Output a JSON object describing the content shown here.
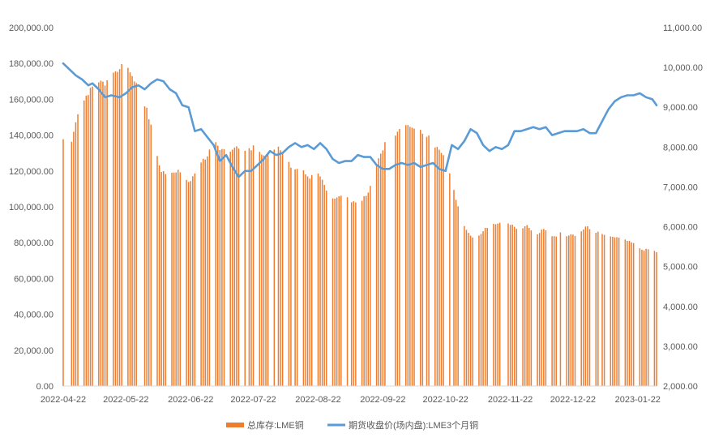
{
  "chart_data": {
    "type": "bar+line",
    "title": "",
    "xlabel": "",
    "ylabel": "",
    "y2label": "",
    "grid": false,
    "legend_position": "bottom",
    "x_ticks": [
      "2022-04-22",
      "2022-05-22",
      "2022-06-22",
      "2022-07-22",
      "2022-08-22",
      "2022-09-22",
      "2022-10-22",
      "2022-11-22",
      "2022-12-22",
      "2023-01-22"
    ],
    "y_left": {
      "min": 0,
      "max": 200000,
      "ticks": [
        "0.00",
        "20,000.00",
        "40,000.00",
        "60,000.00",
        "80,000.00",
        "100,000.00",
        "120,000.00",
        "140,000.00",
        "160,000.00",
        "180,000.00",
        "200,000.00"
      ]
    },
    "y_right": {
      "min": 2000,
      "max": 11000,
      "ticks": [
        "2,000.00",
        "3,000.00",
        "4,000.00",
        "5,000.00",
        "6,000.00",
        "7,000.00",
        "8,000.00",
        "9,000.00",
        "10,000.00",
        "11,000.00"
      ]
    },
    "series": [
      {
        "name": "总库存:LME铜",
        "type": "bar",
        "axis": "left",
        "color": "#ED7D31",
        "anchors": [
          [
            "2022-04-22",
            137500
          ],
          [
            "2022-04-26",
            137000
          ],
          [
            "2022-04-28",
            148000
          ],
          [
            "2022-05-01",
            156000
          ],
          [
            "2022-05-05",
            165000
          ],
          [
            "2022-05-08",
            170000
          ],
          [
            "2022-05-12",
            168000
          ],
          [
            "2022-05-15",
            176000
          ],
          [
            "2022-05-19",
            177000
          ],
          [
            "2022-05-22",
            181000
          ],
          [
            "2022-05-25",
            172000
          ],
          [
            "2022-05-28",
            168000
          ],
          [
            "2022-06-01",
            154000
          ],
          [
            "2022-06-04",
            140000
          ],
          [
            "2022-06-08",
            119000
          ],
          [
            "2022-06-12",
            118000
          ],
          [
            "2022-06-16",
            121000
          ],
          [
            "2022-06-19",
            117000
          ],
          [
            "2022-06-22",
            114000
          ],
          [
            "2022-06-26",
            124000
          ],
          [
            "2022-06-30",
            128000
          ],
          [
            "2022-07-03",
            136000
          ],
          [
            "2022-07-07",
            132000
          ],
          [
            "2022-07-11",
            131000
          ],
          [
            "2022-07-15",
            133000
          ],
          [
            "2022-07-19",
            131000
          ],
          [
            "2022-07-22",
            133000
          ],
          [
            "2022-07-26",
            130000
          ],
          [
            "2022-07-30",
            127000
          ],
          [
            "2022-08-02",
            135000
          ],
          [
            "2022-08-06",
            128000
          ],
          [
            "2022-08-10",
            121000
          ],
          [
            "2022-08-14",
            122000
          ],
          [
            "2022-08-18",
            116000
          ],
          [
            "2022-08-22",
            119000
          ],
          [
            "2022-08-26",
            109000
          ],
          [
            "2022-08-30",
            104000
          ],
          [
            "2022-09-03",
            106000
          ],
          [
            "2022-09-07",
            103000
          ],
          [
            "2022-09-11",
            102000
          ],
          [
            "2022-09-15",
            108000
          ],
          [
            "2022-09-19",
            124000
          ],
          [
            "2022-09-23",
            135000
          ],
          [
            "2022-09-27",
            139000
          ],
          [
            "2022-10-01",
            145000
          ],
          [
            "2022-10-05",
            146000
          ],
          [
            "2022-10-09",
            144000
          ],
          [
            "2022-10-13",
            140000
          ],
          [
            "2022-10-17",
            134000
          ],
          [
            "2022-10-21",
            128000
          ],
          [
            "2022-10-25",
            114000
          ],
          [
            "2022-10-29",
            95000
          ],
          [
            "2022-11-02",
            85000
          ],
          [
            "2022-11-06",
            82000
          ],
          [
            "2022-11-10",
            88000
          ],
          [
            "2022-11-14",
            90000
          ],
          [
            "2022-11-18",
            91000
          ],
          [
            "2022-11-22",
            90000
          ],
          [
            "2022-11-26",
            87000
          ],
          [
            "2022-11-30",
            89000
          ],
          [
            "2022-12-04",
            84000
          ],
          [
            "2022-12-08",
            88000
          ],
          [
            "2022-12-12",
            83000
          ],
          [
            "2022-12-16",
            85000
          ],
          [
            "2022-12-20",
            84000
          ],
          [
            "2022-12-24",
            84000
          ],
          [
            "2022-12-28",
            89000
          ],
          [
            "2022-12-31",
            87000
          ],
          [
            "2023-01-04",
            85000
          ],
          [
            "2023-01-08",
            84000
          ],
          [
            "2023-01-12",
            83000
          ],
          [
            "2023-01-16",
            82000
          ],
          [
            "2023-01-20",
            79000
          ],
          [
            "2023-01-24",
            76000
          ],
          [
            "2023-01-27",
            76000
          ],
          [
            "2023-01-30",
            75000
          ]
        ]
      },
      {
        "name": "期货收盘价(场内盘):LME3个月铜",
        "type": "line",
        "axis": "right",
        "color": "#5B9BD5",
        "anchors": [
          [
            "2022-04-22",
            10100
          ],
          [
            "2022-04-25",
            9950
          ],
          [
            "2022-04-28",
            9800
          ],
          [
            "2022-05-01",
            9700
          ],
          [
            "2022-05-04",
            9550
          ],
          [
            "2022-05-06",
            9600
          ],
          [
            "2022-05-09",
            9450
          ],
          [
            "2022-05-12",
            9250
          ],
          [
            "2022-05-15",
            9300
          ],
          [
            "2022-05-19",
            9250
          ],
          [
            "2022-05-22",
            9350
          ],
          [
            "2022-05-25",
            9500
          ],
          [
            "2022-05-28",
            9550
          ],
          [
            "2022-05-31",
            9450
          ],
          [
            "2022-06-03",
            9600
          ],
          [
            "2022-06-06",
            9700
          ],
          [
            "2022-06-09",
            9650
          ],
          [
            "2022-06-12",
            9450
          ],
          [
            "2022-06-15",
            9350
          ],
          [
            "2022-06-18",
            9050
          ],
          [
            "2022-06-21",
            9000
          ],
          [
            "2022-06-24",
            8400
          ],
          [
            "2022-06-27",
            8450
          ],
          [
            "2022-06-30",
            8250
          ],
          [
            "2022-07-03",
            8050
          ],
          [
            "2022-07-06",
            7650
          ],
          [
            "2022-07-09",
            7800
          ],
          [
            "2022-07-12",
            7500
          ],
          [
            "2022-07-15",
            7250
          ],
          [
            "2022-07-18",
            7400
          ],
          [
            "2022-07-21",
            7400
          ],
          [
            "2022-07-24",
            7550
          ],
          [
            "2022-07-27",
            7700
          ],
          [
            "2022-07-30",
            7900
          ],
          [
            "2022-08-02",
            7800
          ],
          [
            "2022-08-05",
            7850
          ],
          [
            "2022-08-08",
            8000
          ],
          [
            "2022-08-11",
            8100
          ],
          [
            "2022-08-14",
            8000
          ],
          [
            "2022-08-17",
            8050
          ],
          [
            "2022-08-20",
            7950
          ],
          [
            "2022-08-23",
            8100
          ],
          [
            "2022-08-26",
            7950
          ],
          [
            "2022-08-29",
            7700
          ],
          [
            "2022-09-01",
            7600
          ],
          [
            "2022-09-04",
            7650
          ],
          [
            "2022-09-07",
            7650
          ],
          [
            "2022-09-10",
            7800
          ],
          [
            "2022-09-13",
            7750
          ],
          [
            "2022-09-16",
            7750
          ],
          [
            "2022-09-19",
            7550
          ],
          [
            "2022-09-22",
            7450
          ],
          [
            "2022-09-25",
            7450
          ],
          [
            "2022-09-28",
            7550
          ],
          [
            "2022-10-01",
            7600
          ],
          [
            "2022-10-04",
            7550
          ],
          [
            "2022-10-07",
            7600
          ],
          [
            "2022-10-10",
            7500
          ],
          [
            "2022-10-13",
            7550
          ],
          [
            "2022-10-16",
            7600
          ],
          [
            "2022-10-19",
            7450
          ],
          [
            "2022-10-22",
            7400
          ],
          [
            "2022-10-25",
            8050
          ],
          [
            "2022-10-28",
            7950
          ],
          [
            "2022-10-31",
            8150
          ],
          [
            "2022-11-03",
            8450
          ],
          [
            "2022-11-06",
            8350
          ],
          [
            "2022-11-09",
            8050
          ],
          [
            "2022-11-12",
            7900
          ],
          [
            "2022-11-15",
            8000
          ],
          [
            "2022-11-18",
            7950
          ],
          [
            "2022-11-21",
            8050
          ],
          [
            "2022-11-24",
            8400
          ],
          [
            "2022-11-27",
            8400
          ],
          [
            "2022-11-30",
            8450
          ],
          [
            "2022-12-03",
            8500
          ],
          [
            "2022-12-06",
            8450
          ],
          [
            "2022-12-09",
            8500
          ],
          [
            "2022-12-12",
            8300
          ],
          [
            "2022-12-15",
            8350
          ],
          [
            "2022-12-18",
            8400
          ],
          [
            "2022-12-21",
            8400
          ],
          [
            "2022-12-24",
            8400
          ],
          [
            "2022-12-27",
            8450
          ],
          [
            "2022-12-30",
            8350
          ],
          [
            "2023-01-02",
            8350
          ],
          [
            "2023-01-05",
            8650
          ],
          [
            "2023-01-08",
            8950
          ],
          [
            "2023-01-11",
            9150
          ],
          [
            "2023-01-14",
            9250
          ],
          [
            "2023-01-17",
            9300
          ],
          [
            "2023-01-20",
            9300
          ],
          [
            "2023-01-23",
            9350
          ],
          [
            "2023-01-26",
            9250
          ],
          [
            "2023-01-29",
            9200
          ],
          [
            "2023-01-31",
            9050
          ]
        ]
      }
    ]
  }
}
